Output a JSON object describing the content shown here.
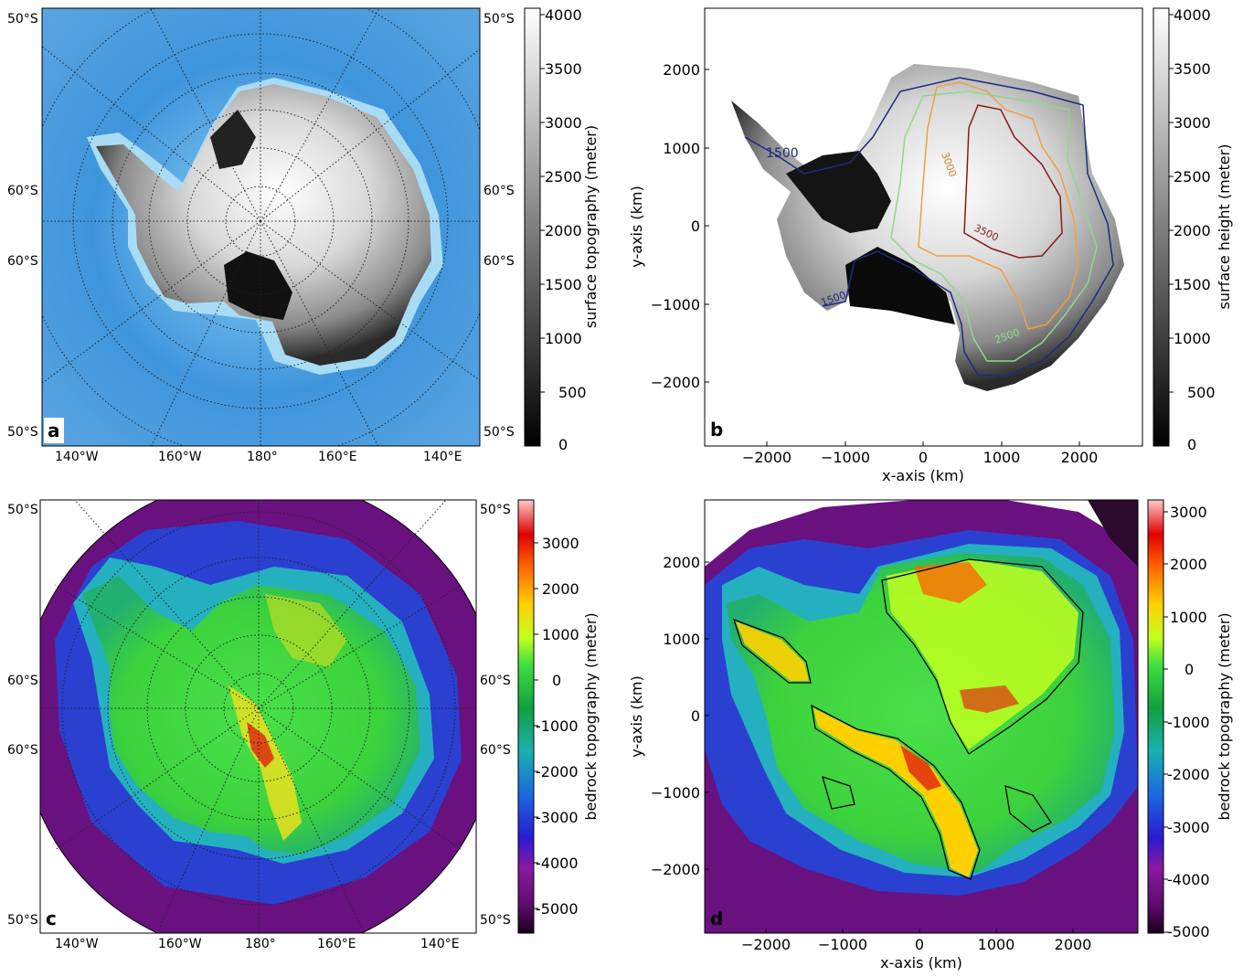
{
  "panels": [
    {
      "letter": "a",
      "colorbar_label": "surface topography (meter)",
      "colorbar_ticks": [
        "4000",
        "3500",
        "3000",
        "2500",
        "2000",
        "1500",
        "1000",
        "500",
        "0"
      ],
      "lon_labels": [
        "140°W",
        "160°W",
        "180°",
        "160°E",
        "140°E"
      ],
      "lat_labels": [
        "50°S",
        "60°S",
        "60°S",
        "50°S"
      ]
    },
    {
      "letter": "b",
      "colorbar_label": "surface height (meter)",
      "colorbar_ticks": [
        "4000",
        "3500",
        "3000",
        "2500",
        "2000",
        "1500",
        "1000",
        "500",
        "0"
      ],
      "xlabel": "x-axis (km)",
      "ylabel": "y-axis (km)",
      "xticks": [
        "−2000",
        "−1000",
        "0",
        "1000",
        "2000"
      ],
      "yticks": [
        "2000",
        "1000",
        "0",
        "−1000",
        "−2000"
      ],
      "contour_labels": [
        "1500",
        "3000",
        "3500",
        "1500",
        "2500"
      ]
    },
    {
      "letter": "c",
      "colorbar_label": "bedrock topography (meter)",
      "colorbar_ticks": [
        "3000",
        "2000",
        "1000",
        "0",
        "-1000",
        "-2000",
        "-3000",
        "-4000",
        "-5000"
      ],
      "lon_labels": [
        "140°W",
        "160°W",
        "180°",
        "160°E",
        "140°E"
      ],
      "lat_labels": [
        "50°S",
        "60°S",
        "60°S",
        "50°S"
      ]
    },
    {
      "letter": "d",
      "colorbar_label": "bedrock topography (meter)",
      "colorbar_ticks": [
        "3000",
        "2000",
        "1000",
        "0",
        "-1000",
        "-2000",
        "-3000",
        "-4000",
        "-5000"
      ],
      "xlabel": "x-axis (km)",
      "ylabel": "y-axis (km)",
      "xticks": [
        "−2000",
        "−1000",
        "0",
        "1000",
        "2000"
      ],
      "yticks": [
        "2000",
        "1000",
        "0",
        "−1000",
        "−2000"
      ]
    }
  ],
  "colors": {
    "ocean_blue": "#3d8fd6",
    "shelf_blue": "#7cc3ee",
    "ice_white": "#f2f2f2",
    "contour_navy": "#1f2a80",
    "contour_green": "#8fd88a",
    "contour_orange": "#f0a040",
    "contour_darkred": "#8a1a1a",
    "bed_purple": "#6a1180",
    "bed_green": "#3ad23a"
  }
}
